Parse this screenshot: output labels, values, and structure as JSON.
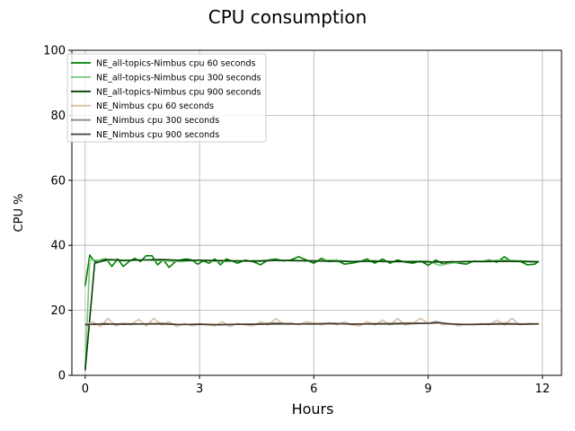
{
  "chart_data": {
    "type": "line",
    "title": "CPU consumption",
    "xlabel": "Hours",
    "ylabel": "CPU %",
    "xlim": [
      -0.35,
      12.5
    ],
    "ylim": [
      0,
      100
    ],
    "xticks": [
      0,
      3,
      6,
      9,
      12
    ],
    "yticks": [
      0,
      20,
      40,
      60,
      80,
      100
    ],
    "grid": true,
    "legend_position": "top-left",
    "series": [
      {
        "name": "NE_all-topics-Nimbus cpu 60 seconds",
        "color": "#008000",
        "x": [
          0,
          0.12,
          0.25,
          0.4,
          0.55,
          0.7,
          0.85,
          1.0,
          1.15,
          1.3,
          1.45,
          1.6,
          1.75,
          1.9,
          2.05,
          2.2,
          2.35,
          2.5,
          2.65,
          2.8,
          2.95,
          3.1,
          3.25,
          3.4,
          3.55,
          3.7,
          3.85,
          4.0,
          4.2,
          4.4,
          4.6,
          4.8,
          5.0,
          5.2,
          5.4,
          5.6,
          5.8,
          6.0,
          6.2,
          6.4,
          6.6,
          6.8,
          7.0,
          7.2,
          7.4,
          7.6,
          7.8,
          8.0,
          8.2,
          8.4,
          8.6,
          8.8,
          9.0,
          9.2,
          9.4,
          9.6,
          9.8,
          10.0,
          10.2,
          10.4,
          10.6,
          10.8,
          11.0,
          11.2,
          11.4,
          11.6,
          11.8,
          11.9
        ],
        "y": [
          27.5,
          37,
          35,
          35.5,
          35.8,
          33.5,
          35.8,
          33.5,
          35,
          36,
          35,
          36.8,
          36.8,
          34,
          35.5,
          33.2,
          34.8,
          35.5,
          35.8,
          35.5,
          34.2,
          35.2,
          34.5,
          35.8,
          34,
          35.8,
          35.2,
          34.5,
          35.5,
          35,
          34,
          35.5,
          35.8,
          35.2,
          35.5,
          36.5,
          35.5,
          34.5,
          36,
          35,
          35.5,
          34.2,
          34.5,
          35,
          35.8,
          34.5,
          35.8,
          34.5,
          35.5,
          34.8,
          34.5,
          35.2,
          33.8,
          35.5,
          34.2,
          35,
          34.5,
          34.2,
          35.2,
          35,
          35.5,
          34.8,
          36.5,
          35,
          35.2,
          34,
          34.2,
          35.2
        ]
      },
      {
        "name": "NE_all-topics-Nimbus cpu 300 seconds",
        "color": "#7bc47b",
        "x": [
          0,
          0.12,
          0.25,
          0.5,
          0.75,
          1.0,
          1.5,
          2.0,
          2.5,
          3.0,
          3.5,
          4.0,
          4.5,
          5.0,
          5.5,
          6.0,
          6.5,
          7.0,
          7.5,
          8.0,
          8.5,
          9.0,
          9.3,
          9.6,
          10.0,
          10.5,
          11.0,
          11.5,
          11.9
        ],
        "y": [
          2,
          35.5,
          35.5,
          35.2,
          35.5,
          35.2,
          35.5,
          35.2,
          35,
          35.5,
          35,
          35.2,
          35.3,
          35.5,
          35.2,
          35.2,
          35.5,
          35,
          35.3,
          35,
          35,
          35.2,
          33.8,
          34.5,
          35,
          35.2,
          35.5,
          35.2,
          35
        ]
      },
      {
        "name": "NE_all-topics-Nimbus cpu 900 seconds",
        "color": "#004000",
        "x": [
          0,
          0.25,
          0.6,
          1.0,
          1.5,
          2.0,
          2.5,
          3.0,
          3.5,
          4.0,
          4.5,
          5.0,
          5.5,
          6.0,
          6.5,
          7.0,
          7.5,
          8.0,
          8.5,
          9.0,
          9.5,
          10.0,
          10.5,
          11.0,
          11.5,
          11.9
        ],
        "y": [
          1.5,
          34.5,
          35.6,
          35.4,
          35.5,
          35.6,
          35.4,
          35.4,
          35.3,
          35.2,
          35.1,
          35.4,
          35.3,
          35.2,
          35.1,
          35.0,
          35.1,
          35.0,
          35.0,
          34.9,
          34.9,
          35.0,
          35.0,
          35.1,
          35.0,
          34.9
        ]
      },
      {
        "name": "NE_Nimbus cpu 60 seconds",
        "color": "#d9c0a6",
        "x": [
          0,
          0.2,
          0.4,
          0.6,
          0.8,
          1.0,
          1.2,
          1.4,
          1.6,
          1.8,
          2.0,
          2.2,
          2.4,
          2.6,
          2.8,
          3.0,
          3.2,
          3.4,
          3.6,
          3.8,
          4.0,
          4.2,
          4.4,
          4.6,
          4.8,
          5.0,
          5.2,
          5.4,
          5.6,
          5.8,
          6.0,
          6.2,
          6.4,
          6.6,
          6.8,
          7.0,
          7.2,
          7.4,
          7.6,
          7.8,
          8.0,
          8.2,
          8.4,
          8.6,
          8.8,
          9.0,
          9.2,
          9.4,
          9.6,
          9.8,
          10.0,
          10.2,
          10.4,
          10.6,
          10.8,
          11.0,
          11.2,
          11.4,
          11.6,
          11.9
        ],
        "y": [
          15.5,
          16.5,
          15,
          17.5,
          15.2,
          16,
          15.5,
          17.2,
          15.2,
          17.5,
          15.5,
          16.5,
          15,
          16,
          15.2,
          15.8,
          15.5,
          15.2,
          16.5,
          15,
          16,
          15.5,
          15.2,
          16.5,
          15.5,
          17.5,
          15.8,
          16.2,
          15.5,
          16.5,
          16,
          15.5,
          16.2,
          15.5,
          16.5,
          15.5,
          15.2,
          16.5,
          15.5,
          17,
          15.5,
          17.5,
          15.5,
          16,
          17.5,
          16,
          16.5,
          15.5,
          16,
          15.2,
          15.8,
          15.5,
          16,
          15.5,
          17,
          15.5,
          17.5,
          15.5,
          16,
          15.8
        ]
      },
      {
        "name": "NE_Nimbus cpu 300 seconds",
        "color": "#8b7d6b",
        "x": [
          0,
          0.25,
          0.5,
          0.75,
          1.0,
          1.5,
          2.0,
          2.5,
          3.0,
          3.5,
          4.0,
          4.5,
          5.0,
          5.5,
          6.0,
          6.5,
          7.0,
          7.5,
          8.0,
          8.5,
          9.0,
          9.2,
          9.5,
          10.0,
          10.5,
          11.0,
          11.5,
          11.9
        ],
        "y": [
          15.8,
          15.6,
          16.0,
          15.7,
          15.9,
          15.8,
          16.0,
          15.6,
          15.8,
          15.5,
          15.7,
          15.8,
          16.1,
          15.8,
          15.9,
          16.0,
          15.7,
          15.9,
          16.0,
          16.1,
          16.0,
          16.5,
          15.8,
          15.7,
          15.8,
          16.0,
          15.8,
          15.9
        ]
      },
      {
        "name": "NE_Nimbus cpu 900 seconds",
        "color": "#4a3f35",
        "x": [
          0,
          0.25,
          0.5,
          0.75,
          1.0,
          1.5,
          2.0,
          2.5,
          3.0,
          3.5,
          4.0,
          4.5,
          5.0,
          5.5,
          6.0,
          6.5,
          7.0,
          7.5,
          8.0,
          8.5,
          9.0,
          9.3,
          9.6,
          10.0,
          10.5,
          11.0,
          11.5,
          11.9
        ],
        "y": [
          15.5,
          15.8,
          15.7,
          15.8,
          15.7,
          15.8,
          15.8,
          15.6,
          15.7,
          15.6,
          15.7,
          15.7,
          15.8,
          15.8,
          15.8,
          15.9,
          15.8,
          15.8,
          15.8,
          15.9,
          16.0,
          16.2,
          15.8,
          15.6,
          15.7,
          15.8,
          15.7,
          15.8
        ]
      }
    ]
  }
}
